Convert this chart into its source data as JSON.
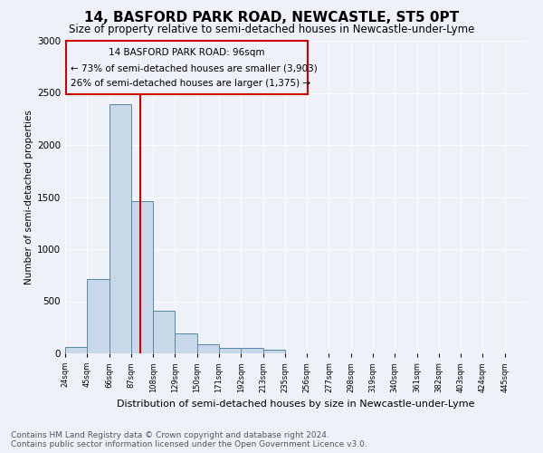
{
  "title": "14, BASFORD PARK ROAD, NEWCASTLE, ST5 0PT",
  "subtitle": "Size of property relative to semi-detached houses in Newcastle-under-Lyme",
  "xlabel": "Distribution of semi-detached houses by size in Newcastle-under-Lyme",
  "ylabel": "Number of semi-detached properties",
  "bar_values": [
    60,
    710,
    2390,
    1460,
    410,
    195,
    90,
    55,
    50,
    35,
    0,
    0,
    0,
    0,
    0,
    0,
    0,
    0,
    0,
    0
  ],
  "categories": [
    "24sqm",
    "45sqm",
    "66sqm",
    "87sqm",
    "108sqm",
    "129sqm",
    "150sqm",
    "171sqm",
    "192sqm",
    "213sqm",
    "235sqm",
    "256sqm",
    "277sqm",
    "298sqm",
    "319sqm",
    "340sqm",
    "361sqm",
    "382sqm",
    "403sqm",
    "424sqm",
    "445sqm"
  ],
  "bar_color": "#c8d8e8",
  "bar_edge_color": "#5588aa",
  "subject_line_color": "#cc0000",
  "annotation_line1": "14 BASFORD PARK ROAD: 96sqm",
  "annotation_line2": "← 73% of semi-detached houses are smaller (3,903)",
  "annotation_line3": "26% of semi-detached houses are larger (1,375) →",
  "annotation_box_color": "#cc0000",
  "ylim": [
    0,
    3000
  ],
  "yticks": [
    0,
    500,
    1000,
    1500,
    2000,
    2500,
    3000
  ],
  "background_color": "#eef2f8",
  "grid_color": "#ffffff",
  "footer_line1": "Contains HM Land Registry data © Crown copyright and database right 2024.",
  "footer_line2": "Contains public sector information licensed under the Open Government Licence v3.0.",
  "title_fontsize": 11,
  "subtitle_fontsize": 8.5,
  "annotation_fontsize": 7.5,
  "footer_fontsize": 6.5,
  "ylabel_fontsize": 7.5,
  "xlabel_fontsize": 8
}
